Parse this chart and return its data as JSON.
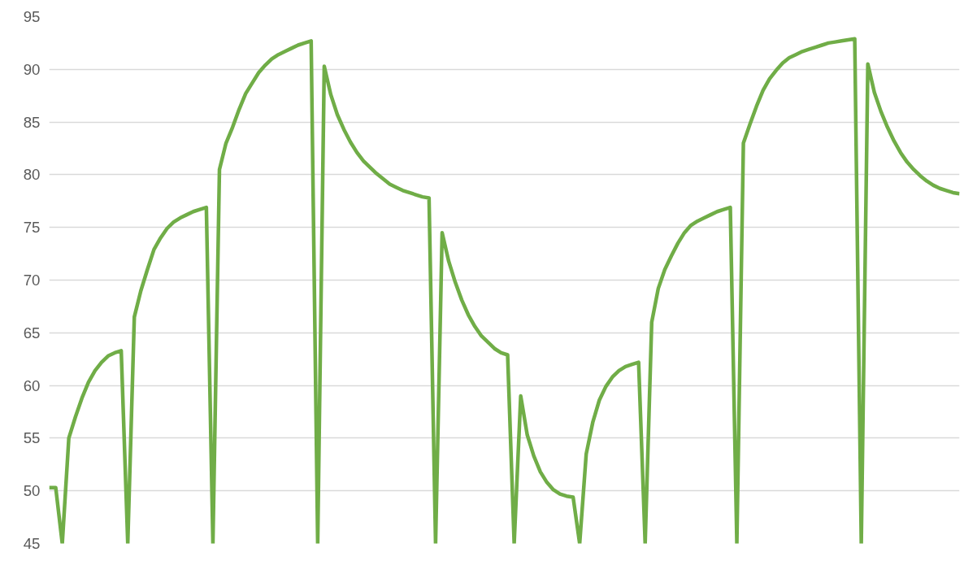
{
  "chart_data": {
    "type": "line",
    "categories": [
      null,
      null,
      null,
      null,
      null,
      null,
      null,
      null,
      null,
      null,
      null,
      null,
      null,
      null,
      null,
      null,
      null,
      null,
      null,
      null,
      null,
      null,
      null,
      null,
      null,
      null,
      null,
      null,
      null,
      null,
      null,
      null,
      null,
      null,
      null,
      null,
      null,
      null,
      null,
      null,
      null,
      null,
      null,
      null,
      null,
      null,
      null,
      null,
      null,
      null,
      null,
      null,
      null,
      null,
      null,
      null,
      null,
      null,
      null,
      null,
      null,
      null,
      null,
      null,
      null,
      null,
      null,
      null,
      null,
      null,
      null,
      null,
      null,
      null,
      null,
      null,
      null,
      null,
      null,
      null,
      null,
      null,
      null,
      null,
      null,
      null,
      null,
      null,
      null,
      null,
      null,
      null,
      null,
      null,
      null,
      null,
      null,
      null,
      null,
      null,
      null,
      null,
      null,
      null,
      null,
      null,
      null,
      null,
      null,
      null,
      null,
      null,
      null,
      null,
      null,
      null,
      null,
      null,
      null,
      null,
      null,
      null,
      null,
      null,
      null,
      null,
      null,
      null,
      null,
      null,
      null,
      null,
      null,
      null,
      null,
      null,
      null,
      null,
      null,
      null
    ],
    "series": [
      {
        "color": "#70ad47",
        "values": [
          50.3,
          50.3,
          45,
          55,
          57,
          58.8,
          60.3,
          61.4,
          62.2,
          62.8,
          63.1,
          63.3,
          45,
          66.5,
          69,
          71,
          72.9,
          74,
          74.9,
          75.5,
          75.9,
          76.2,
          76.5,
          76.7,
          76.9,
          45,
          80.5,
          83,
          84.5,
          86.2,
          87.7,
          88.7,
          89.7,
          90.4,
          91,
          91.4,
          91.7,
          92,
          92.3,
          92.5,
          92.7,
          45,
          90.3,
          87.6,
          85.7,
          84.3,
          83.1,
          82.1,
          81.3,
          80.7,
          80.1,
          79.6,
          79.1,
          78.8,
          78.5,
          78.3,
          78.1,
          77.9,
          77.8,
          45,
          74.5,
          71.8,
          69.8,
          68.1,
          66.7,
          65.6,
          64.7,
          64.1,
          63.5,
          63.1,
          62.9,
          45,
          59,
          55.3,
          53.3,
          51.8,
          50.8,
          50.1,
          49.7,
          49.5,
          49.4,
          45,
          53.5,
          56.5,
          58.6,
          59.9,
          60.8,
          61.4,
          61.8,
          62,
          62.2,
          45,
          66,
          69.2,
          71,
          72.3,
          73.5,
          74.5,
          75.2,
          75.6,
          75.9,
          76.2,
          76.5,
          76.7,
          76.9,
          45,
          83,
          84.8,
          86.5,
          88,
          89.1,
          89.9,
          90.6,
          91.1,
          91.4,
          91.7,
          91.9,
          92.1,
          92.3,
          92.5,
          92.6,
          92.7,
          92.8,
          92.9,
          45,
          90.5,
          87.8,
          86,
          84.5,
          83.2,
          82.1,
          81.2,
          80.5,
          79.9,
          79.4,
          79,
          78.7,
          78.5,
          78.3,
          78.2
        ]
      }
    ],
    "ylim": [
      45,
      95
    ],
    "yticks": [
      45,
      50,
      55,
      60,
      65,
      70,
      75,
      80,
      85,
      90,
      95
    ],
    "grid": "y",
    "tick_labels": "y",
    "line_style": "solid",
    "marker": "none"
  }
}
